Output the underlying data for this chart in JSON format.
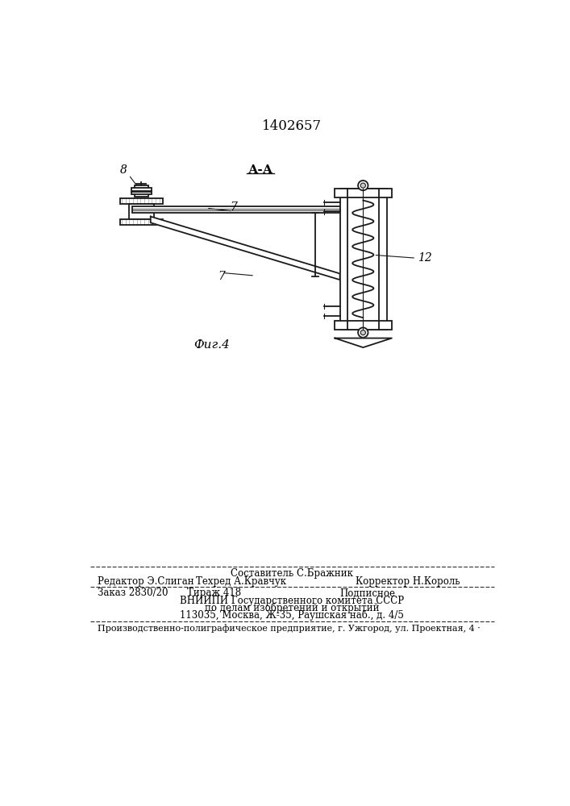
{
  "patent_number": "1402657",
  "section_label": "А-А",
  "figure_label": "Фиг.4",
  "label_8": "8",
  "label_7a": "7",
  "label_7b": "7",
  "label_12": "12",
  "footer_above_center": "Составитель С.Бражник",
  "footer_line1_left": "Редактор Э.Слиган",
  "footer_line1_center": "Техред А.Кравчук",
  "footer_line1_right": "Корректор Н.Король",
  "footer_line2_left": "Заказ 2830/20",
  "footer_line2_center": "Тираж 418",
  "footer_line2_right": "Подписное",
  "footer_line3": "ВНИИПИ Государственного комитета СССР",
  "footer_line4": "по делам изобретений и открытий",
  "footer_line5": "113035, Москва, Ж-35, Раушская наб., д. 4/5",
  "footer_bottom": "Производственно-полиграфическое предприятие, г. Ужгород, ул. Проектная, 4 ·",
  "bg_color": "#ffffff",
  "line_color": "#1a1a1a",
  "text_color": "#000000"
}
